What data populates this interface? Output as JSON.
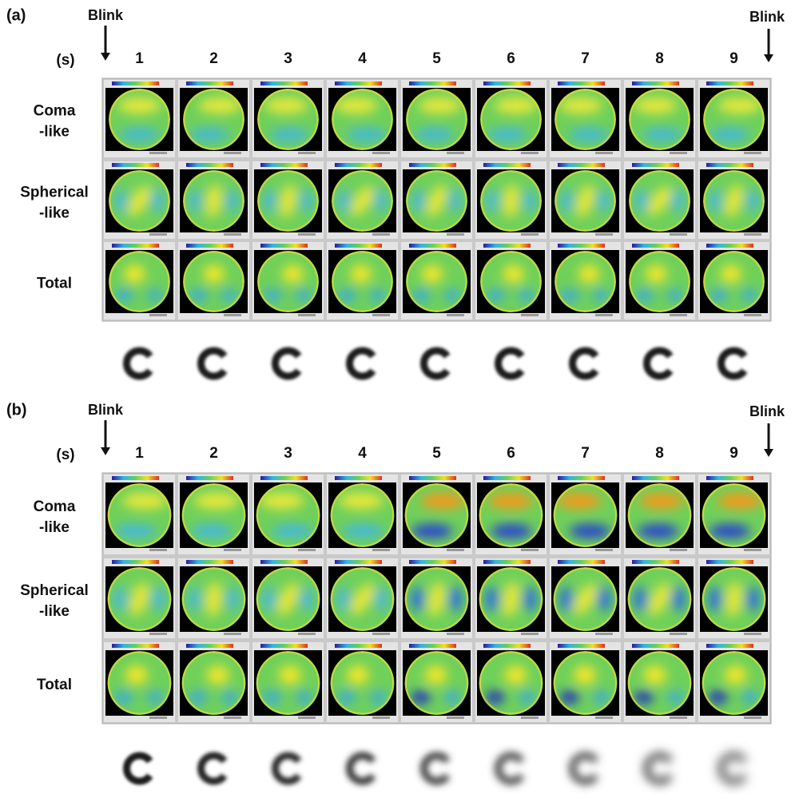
{
  "panels": [
    {
      "label": "(a)",
      "blink_left": "Blink",
      "blink_right": "Blink",
      "unit": "(s)",
      "times": [
        "1",
        "2",
        "3",
        "4",
        "5",
        "6",
        "7",
        "8",
        "9"
      ],
      "rows": [
        [
          "Coma",
          "-like"
        ],
        [
          "Spherical",
          "-like"
        ],
        [
          "Total"
        ]
      ]
    },
    {
      "label": "(b)",
      "blink_left": "Blink",
      "blink_right": "Blink",
      "unit": "(s)",
      "times": [
        "1",
        "2",
        "3",
        "4",
        "5",
        "6",
        "7",
        "8",
        "9"
      ],
      "rows": [
        [
          "Coma",
          "-like"
        ],
        [
          "Spherical",
          "-like"
        ],
        [
          "Total"
        ]
      ]
    }
  ]
}
